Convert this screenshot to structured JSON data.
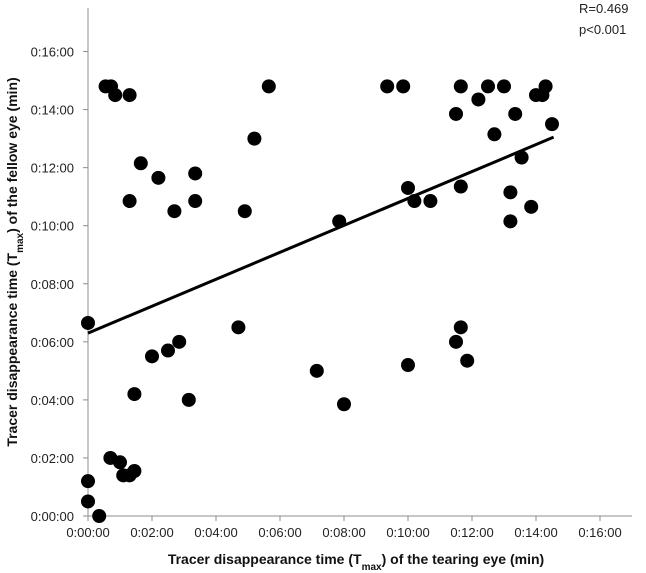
{
  "chart_data": {
    "type": "scatter",
    "x_axis": {
      "title_main": "Tracer disappearance time (T",
      "title_sub": "max",
      "title_end": ") of the tearing eye (min)",
      "unit": "minutes",
      "range": [
        0,
        17
      ],
      "ticks": [
        0,
        2,
        4,
        6,
        8,
        10,
        12,
        14,
        16
      ],
      "tick_labels": [
        "0:00:00",
        "0:02:00",
        "0:04:00",
        "0:06:00",
        "0:08:00",
        "0:10:00",
        "0:12:00",
        "0:14:00",
        "0:16:00"
      ]
    },
    "y_axis": {
      "title_main": "Tracer disappearance time (T",
      "title_sub": "max",
      "title_end": ") of the fellow eye (min)",
      "unit": "minutes",
      "range": [
        0,
        17.5
      ],
      "ticks": [
        0,
        2,
        4,
        6,
        8,
        10,
        12,
        14,
        16
      ],
      "tick_labels": [
        "0:00:00",
        "0:02:00",
        "0:04:00",
        "0:06:00",
        "0:08:00",
        "0:10:00",
        "0:12:00",
        "0:14:00",
        "0:16:00"
      ]
    },
    "grid": false,
    "annotations": [
      "R=0.469",
      "p<0.001"
    ],
    "trendline": {
      "x": [
        0,
        14.55
      ],
      "y": [
        6.3,
        13.05
      ]
    },
    "points": [
      {
        "x": 0.0,
        "y": 6.65
      },
      {
        "x": 0.0,
        "y": 1.2
      },
      {
        "x": 0.0,
        "y": 0.5
      },
      {
        "x": 0.35,
        "y": 0.0
      },
      {
        "x": 0.55,
        "y": 14.8
      },
      {
        "x": 0.72,
        "y": 14.8
      },
      {
        "x": 0.85,
        "y": 14.5
      },
      {
        "x": 0.7,
        "y": 2.0
      },
      {
        "x": 1.0,
        "y": 1.85
      },
      {
        "x": 1.1,
        "y": 1.4
      },
      {
        "x": 1.3,
        "y": 1.4
      },
      {
        "x": 1.45,
        "y": 1.55
      },
      {
        "x": 1.3,
        "y": 14.5
      },
      {
        "x": 1.3,
        "y": 10.85
      },
      {
        "x": 1.45,
        "y": 4.2
      },
      {
        "x": 1.65,
        "y": 12.15
      },
      {
        "x": 2.0,
        "y": 5.5
      },
      {
        "x": 2.2,
        "y": 11.65
      },
      {
        "x": 2.5,
        "y": 5.7
      },
      {
        "x": 2.7,
        "y": 10.5
      },
      {
        "x": 2.85,
        "y": 6.0
      },
      {
        "x": 3.15,
        "y": 4.0
      },
      {
        "x": 3.35,
        "y": 11.8
      },
      {
        "x": 3.35,
        "y": 10.85
      },
      {
        "x": 4.7,
        "y": 6.5
      },
      {
        "x": 4.9,
        "y": 10.5
      },
      {
        "x": 5.2,
        "y": 13.0
      },
      {
        "x": 5.65,
        "y": 14.8
      },
      {
        "x": 7.15,
        "y": 5.0
      },
      {
        "x": 7.85,
        "y": 10.15
      },
      {
        "x": 8.0,
        "y": 3.85
      },
      {
        "x": 9.35,
        "y": 14.8
      },
      {
        "x": 9.85,
        "y": 14.8
      },
      {
        "x": 10.0,
        "y": 11.3
      },
      {
        "x": 10.0,
        "y": 5.2
      },
      {
        "x": 10.2,
        "y": 10.85
      },
      {
        "x": 10.7,
        "y": 10.85
      },
      {
        "x": 11.5,
        "y": 13.85
      },
      {
        "x": 11.65,
        "y": 14.8
      },
      {
        "x": 11.5,
        "y": 6.0
      },
      {
        "x": 11.65,
        "y": 6.5
      },
      {
        "x": 11.65,
        "y": 11.35
      },
      {
        "x": 11.85,
        "y": 5.35
      },
      {
        "x": 12.2,
        "y": 14.35
      },
      {
        "x": 12.5,
        "y": 14.8
      },
      {
        "x": 12.7,
        "y": 13.15
      },
      {
        "x": 13.0,
        "y": 14.8
      },
      {
        "x": 13.2,
        "y": 11.15
      },
      {
        "x": 13.2,
        "y": 10.15
      },
      {
        "x": 13.35,
        "y": 13.85
      },
      {
        "x": 13.55,
        "y": 12.35
      },
      {
        "x": 13.85,
        "y": 10.65
      },
      {
        "x": 14.0,
        "y": 14.5
      },
      {
        "x": 14.2,
        "y": 14.5
      },
      {
        "x": 14.3,
        "y": 14.8
      },
      {
        "x": 14.5,
        "y": 13.5
      }
    ]
  }
}
